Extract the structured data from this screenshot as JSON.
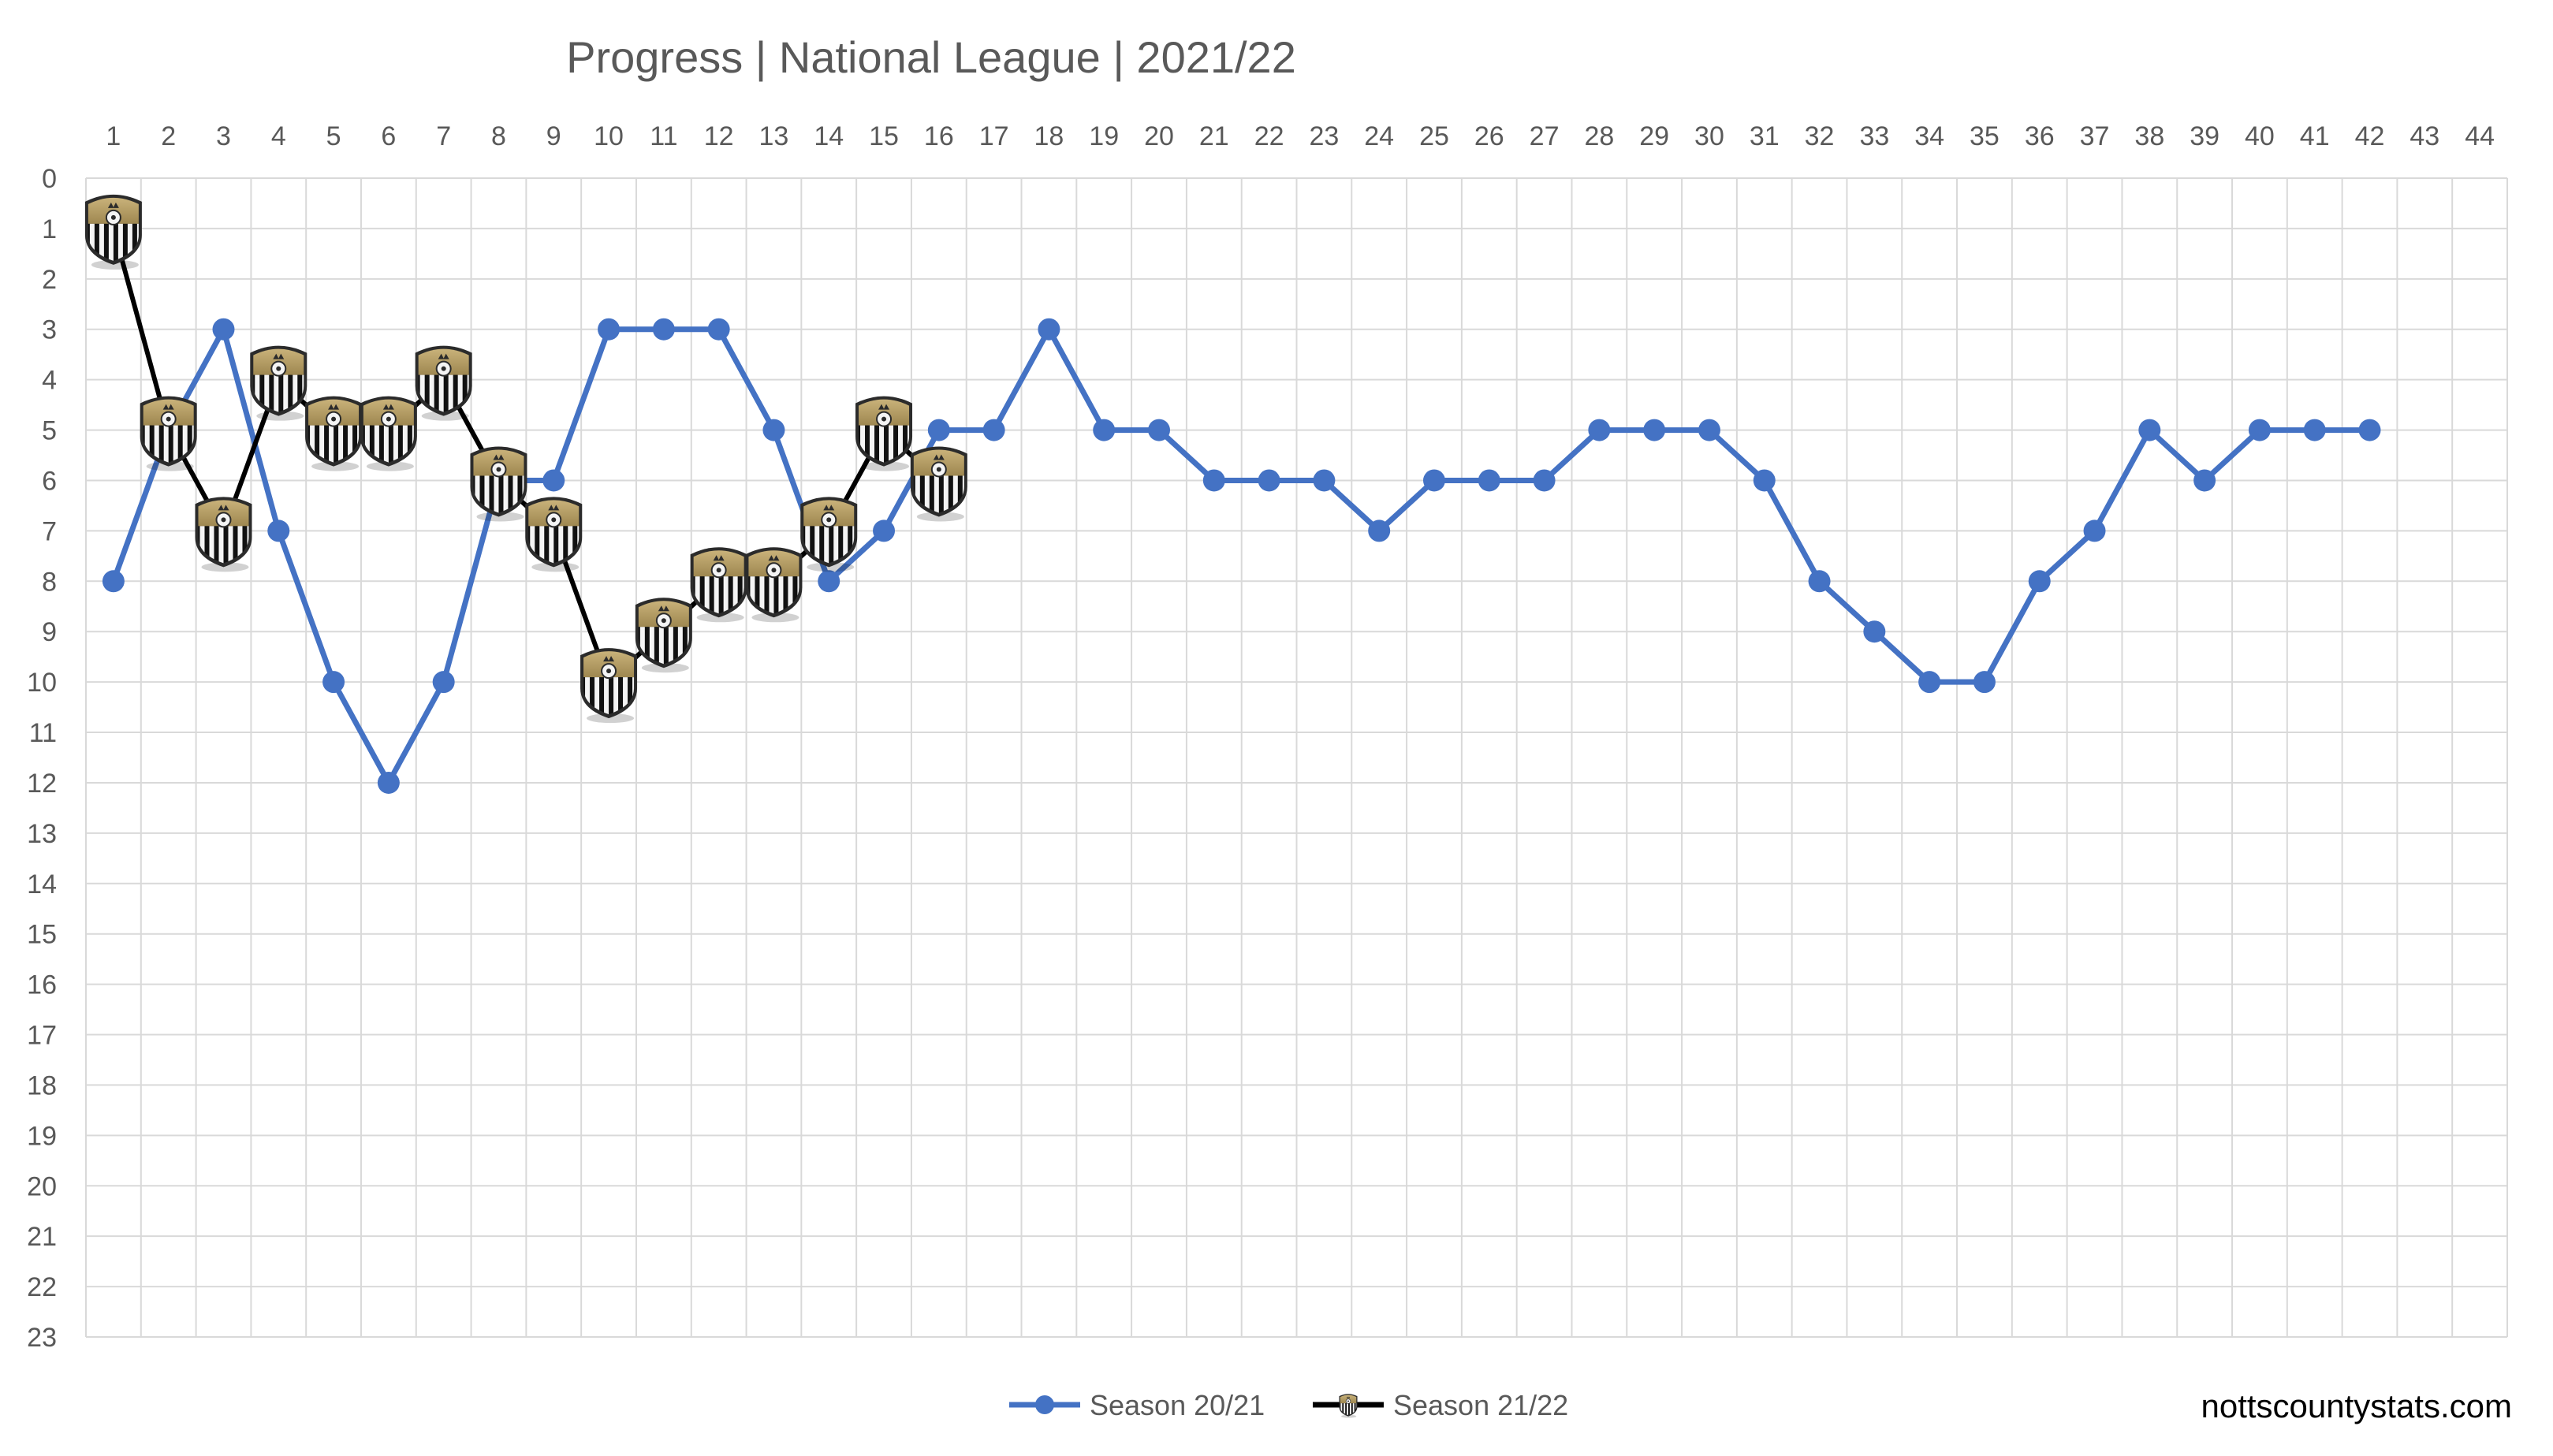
{
  "chart_data": {
    "type": "line",
    "title": "Progress | National League | 2021/22",
    "xlabel": "",
    "ylabel": "",
    "x": [
      1,
      2,
      3,
      4,
      5,
      6,
      7,
      8,
      9,
      10,
      11,
      12,
      13,
      14,
      15,
      16,
      17,
      18,
      19,
      20,
      21,
      22,
      23,
      24,
      25,
      26,
      27,
      28,
      29,
      30,
      31,
      32,
      33,
      34,
      35,
      36,
      37,
      38,
      39,
      40,
      41,
      42,
      43,
      44
    ],
    "xlim": [
      1,
      44
    ],
    "ylim": [
      0,
      23
    ],
    "y_reversed": true,
    "y_ticks": [
      0,
      1,
      2,
      3,
      4,
      5,
      6,
      7,
      8,
      9,
      10,
      11,
      12,
      13,
      14,
      15,
      16,
      17,
      18,
      19,
      20,
      21,
      22,
      23
    ],
    "grid": true,
    "legend_position": "bottom-center",
    "series": [
      {
        "name": "Season 20/21",
        "color": "#4472C4",
        "marker": "circle",
        "x": [
          1,
          2,
          3,
          4,
          5,
          6,
          7,
          8,
          9,
          10,
          11,
          12,
          13,
          14,
          15,
          16,
          17,
          18,
          19,
          20,
          21,
          22,
          23,
          24,
          25,
          26,
          27,
          28,
          29,
          30,
          31,
          32,
          33,
          34,
          35,
          36,
          37,
          38,
          39,
          40,
          41,
          42
        ],
        "values": [
          8,
          5,
          3,
          7,
          10,
          12,
          10,
          6,
          6,
          3,
          3,
          3,
          5,
          8,
          7,
          5,
          5,
          3,
          5,
          5,
          6,
          6,
          6,
          7,
          6,
          6,
          6,
          5,
          5,
          5,
          6,
          8,
          9,
          10,
          10,
          8,
          7,
          5,
          6,
          5,
          5,
          5
        ]
      },
      {
        "name": "Season 21/22",
        "color": "#000000",
        "marker": "club-crest-icon",
        "x": [
          1,
          2,
          3,
          4,
          5,
          6,
          7,
          8,
          9,
          10,
          11,
          12,
          13,
          14,
          15,
          16
        ],
        "values": [
          1,
          5,
          7,
          4,
          5,
          5,
          4,
          6,
          7,
          10,
          9,
          8,
          8,
          7,
          5,
          6
        ]
      }
    ]
  },
  "watermark": "nottscountystats.com"
}
